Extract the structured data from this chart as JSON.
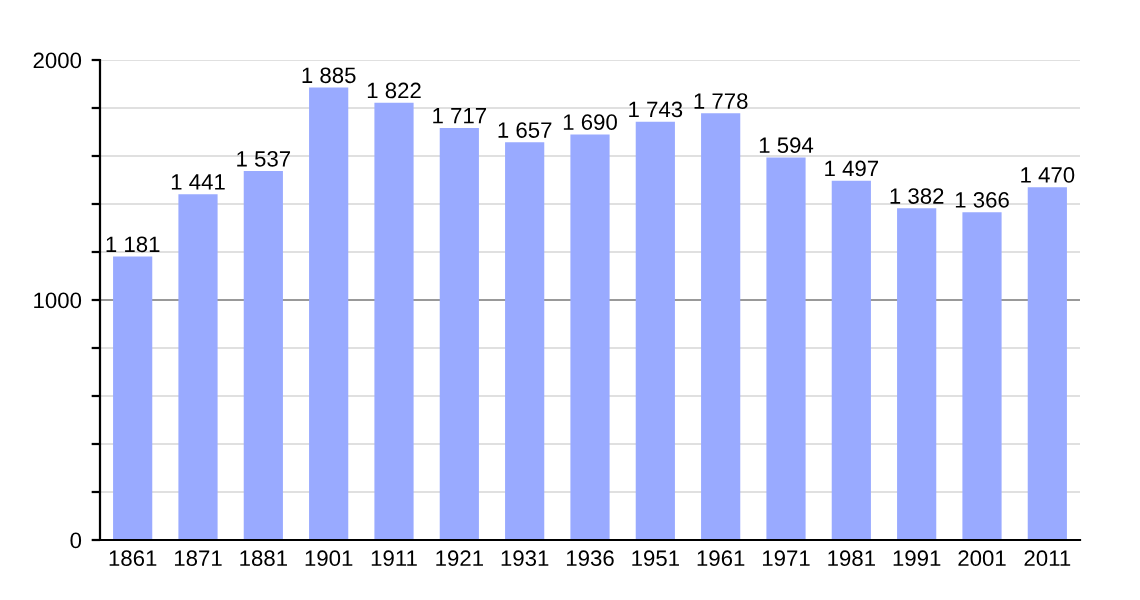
{
  "chart_data": {
    "type": "bar",
    "categories": [
      "1861",
      "1871",
      "1881",
      "1901",
      "1911",
      "1921",
      "1931",
      "1936",
      "1951",
      "1961",
      "1971",
      "1981",
      "1991",
      "2001",
      "2011"
    ],
    "values": [
      1181,
      1441,
      1537,
      1885,
      1822,
      1717,
      1657,
      1690,
      1743,
      1778,
      1594,
      1497,
      1382,
      1366,
      1470
    ],
    "value_labels": [
      "1 181",
      "1 441",
      "1 537",
      "1 885",
      "1 822",
      "1 717",
      "1 657",
      "1 690",
      "1 743",
      "1 778",
      "1 594",
      "1 497",
      "1 382",
      "1 366",
      "1 470"
    ],
    "color": "#99aaff",
    "ylim": [
      0,
      2000
    ],
    "yticks": [
      0,
      {
        "value": 200,
        "label": null
      },
      {
        "value": 400,
        "label": null
      },
      {
        "value": 600,
        "label": null
      },
      {
        "value": 800,
        "label": null
      },
      1000,
      {
        "value": 1200,
        "label": null
      },
      {
        "value": 1400,
        "label": null
      },
      {
        "value": 1600,
        "label": null
      },
      {
        "value": 1800,
        "label": null
      },
      2000
    ],
    "grid": "y",
    "ref_lines": [
      {
        "axis": "y",
        "value": 1000,
        "color": "#999999"
      }
    ]
  }
}
